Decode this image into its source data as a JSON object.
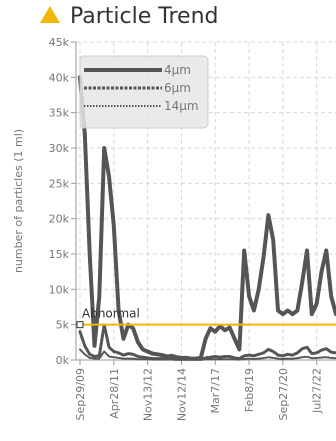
{
  "header": {
    "title": "Particle Trend",
    "icon": "warning-triangle-icon"
  },
  "chart_data": {
    "type": "line",
    "title": "Particle Trend",
    "ylabel": "number of particles (1 ml)",
    "xlabel": "",
    "ylim": [
      0,
      45000
    ],
    "yticks": [
      "0k",
      "5k",
      "10k",
      "15k",
      "20k",
      "25k",
      "30k",
      "35k",
      "40k",
      "45k"
    ],
    "xticks": [
      "Sep29/09",
      "Apr28/11",
      "Nov13/12",
      "Nov12/14",
      "Mar7/17",
      "Feb8/19",
      "Sep27/20",
      "Jul27/22"
    ],
    "x_count": 54,
    "grid": true,
    "legend": "top-left",
    "threshold": {
      "label": "Abnormal",
      "value": 5000,
      "color": "#f2b705"
    },
    "series": [
      {
        "name": "4μm",
        "color": "#555555",
        "dash": "solid",
        "values": [
          40000,
          32000,
          15000,
          2000,
          9000,
          30000,
          26000,
          19000,
          7000,
          3000,
          5000,
          4500,
          2500,
          1500,
          1200,
          900,
          800,
          700,
          500,
          600,
          400,
          300,
          300,
          200,
          200,
          300,
          3000,
          4500,
          4000,
          4800,
          4200,
          4600,
          3000,
          1500,
          15500,
          9000,
          7000,
          10000,
          14500,
          20500,
          17000,
          7000,
          6500,
          7000,
          6500,
          7000,
          11000,
          15500,
          6500,
          8000,
          12500,
          15500,
          9000,
          6500
        ]
      },
      {
        "name": "6μm",
        "color": "#555555",
        "dash": "dashed",
        "values": [
          4000,
          2000,
          800,
          500,
          600,
          5000,
          1800,
          1200,
          1000,
          700,
          900,
          800,
          500,
          400,
          300,
          200,
          200,
          200,
          150,
          150,
          100,
          100,
          100,
          100,
          100,
          100,
          300,
          400,
          500,
          400,
          500,
          500,
          300,
          200,
          600,
          700,
          600,
          800,
          1000,
          1500,
          1200,
          700,
          600,
          800,
          700,
          1000,
          1600,
          1800,
          900,
          1000,
          1400,
          1600,
          1100,
          1000
        ]
      },
      {
        "name": "14μm",
        "color": "#555555",
        "dash": "dotted",
        "values": [
          1500,
          800,
          300,
          200,
          200,
          1200,
          500,
          400,
          300,
          200,
          200,
          200,
          100,
          100,
          100,
          50,
          50,
          50,
          50,
          50,
          30,
          30,
          30,
          30,
          30,
          30,
          80,
          100,
          120,
          100,
          120,
          120,
          80,
          60,
          150,
          200,
          150,
          200,
          250,
          400,
          300,
          200,
          150,
          200,
          180,
          250,
          400,
          450,
          250,
          280,
          350,
          400,
          300,
          250
        ]
      }
    ]
  }
}
